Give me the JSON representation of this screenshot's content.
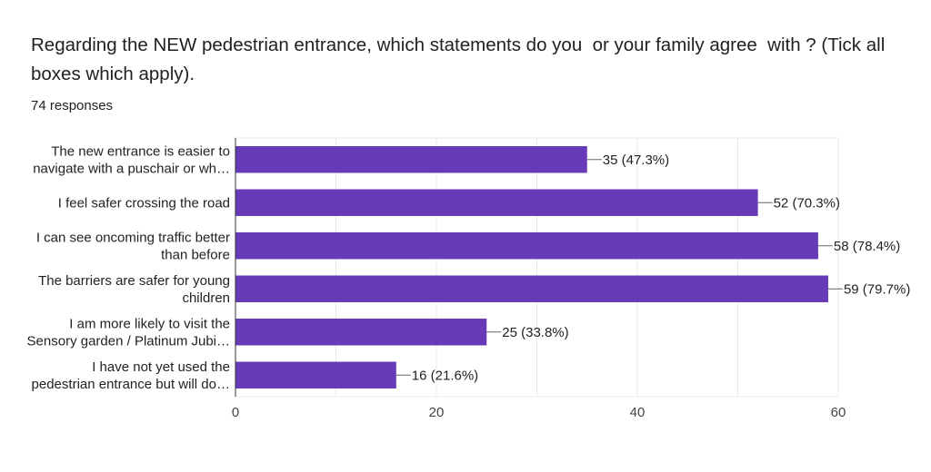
{
  "header": {
    "question": "Regarding the NEW pedestrian entrance, which statements do you  or your family agree  with ? (Tick all boxes which apply).",
    "responses": "74 responses"
  },
  "colors": {
    "bar": "#673ab7",
    "grid": "#e8e8e8",
    "axis": "#333333"
  },
  "chart_data": {
    "type": "bar",
    "orientation": "horizontal",
    "title": "Regarding the NEW pedestrian entrance, which statements do you  or your family agree  with ? (Tick all boxes which apply).",
    "categories": [
      [
        "The new entrance is easier to",
        "navigate with a puschair or wh…"
      ],
      [
        "I feel safer crossing the road"
      ],
      [
        "I can see oncoming traffic better",
        "than before"
      ],
      [
        "The barriers are safer for young",
        "children"
      ],
      [
        "I am more likely to visit the",
        "Sensory garden / Platinum Jubi…"
      ],
      [
        "I have not yet used the",
        "pedestrian entrance but will do…"
      ]
    ],
    "values": [
      35,
      52,
      58,
      59,
      25,
      16
    ],
    "data_labels": [
      "35 (47.3%)",
      "52 (70.3%)",
      "58 (78.4%)",
      "59 (79.7%)",
      "25 (33.8%)",
      "16 (21.6%)"
    ],
    "xlim": [
      0,
      60
    ],
    "xticks": [
      "0",
      "20",
      "40",
      "60"
    ],
    "xlabel": "",
    "ylabel": "",
    "grid": true,
    "legend": "none"
  }
}
